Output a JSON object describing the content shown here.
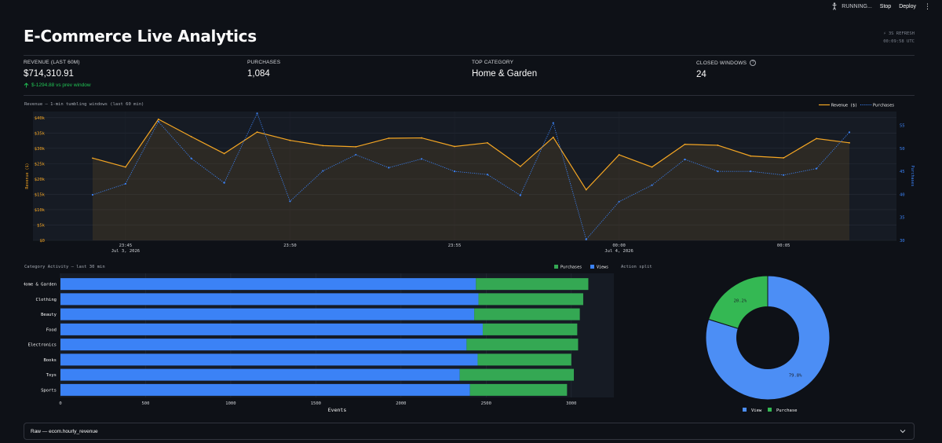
{
  "topbar": {
    "status": "RUNNING...",
    "stop": "Stop",
    "deploy": "Deploy",
    "menu": "⋮"
  },
  "title": "E-Commerce Live Analytics",
  "refresh": {
    "label": "⚡ 3S REFRESH",
    "time": "00:09:58 UTC"
  },
  "metrics": [
    {
      "label": "REVENUE (LAST 60M)",
      "value": "$714,310.91",
      "delta": "$-1294.88 vs prev window"
    },
    {
      "label": "PURCHASES",
      "value": "1,084"
    },
    {
      "label": "TOP CATEGORY",
      "value": "Home & Garden"
    },
    {
      "label": "CLOSED WINDOWS",
      "value": "24"
    }
  ],
  "revenue_chart_title": "Revenue — 1-min tumbling windows  (last 60 min)",
  "category_chart_title": "Category Activity — last 30 min",
  "pie_chart_title": "Action split",
  "expander": {
    "label": "Raw — ecom.hourly_revenue"
  },
  "colors": {
    "revenue": "#f5a623",
    "purchases": "#3b82f6",
    "views": "#3b82f6",
    "purchase_bar": "#34a853",
    "pie_view": "#4c8ef5",
    "pie_purchase": "#34b853"
  },
  "chart_data": [
    {
      "type": "line",
      "x": [
        "23:44",
        "23:45",
        "23:46",
        "23:47",
        "23:48",
        "23:49",
        "23:50",
        "23:51",
        "23:52",
        "23:53",
        "23:54",
        "23:55",
        "23:56",
        "23:57",
        "23:58",
        "23:59",
        "00:00",
        "00:01",
        "00:02",
        "00:03",
        "00:04",
        "00:05",
        "00:06",
        "00:07"
      ],
      "xticks": [
        {
          "at": "23:45",
          "label": "23:45",
          "sub": "Jul 3, 2026"
        },
        {
          "at": "23:50",
          "label": "23:50"
        },
        {
          "at": "23:55",
          "label": "23:55"
        },
        {
          "at": "00:00",
          "label": "00:00",
          "sub": "Jul 4, 2026"
        },
        {
          "at": "00:05",
          "label": "00:05"
        }
      ],
      "series": [
        {
          "name": "Revenue ($)",
          "axis": "y",
          "values": [
            26800,
            23900,
            39500,
            33800,
            28300,
            35300,
            32600,
            30900,
            30500,
            33300,
            33400,
            30600,
            31800,
            24100,
            33600,
            16500,
            27900,
            23900,
            31300,
            31000,
            27500,
            26900,
            33200,
            31800
          ]
        },
        {
          "name": "Purchases",
          "axis": "y2",
          "values": [
            39.9,
            42.3,
            55.8,
            47.8,
            42.5,
            57.6,
            38.5,
            45.1,
            48.6,
            45.8,
            47.7,
            45.0,
            44.3,
            39.8,
            55.5,
            30.2,
            38.4,
            42.0,
            47.6,
            45.0,
            45.0,
            44.2,
            45.6,
            53.5
          ]
        }
      ],
      "ylim": [
        0,
        42000
      ],
      "yticks": [
        "$0",
        "$5k",
        "$10k",
        "$15k",
        "$20k",
        "$25k",
        "$30k",
        "$35k",
        "$40k"
      ],
      "y2lim": [
        30,
        58
      ],
      "y2ticks": [
        30,
        35,
        40,
        45,
        50,
        55
      ],
      "ylabel": "Revenue ($)",
      "y2label": "Purchases",
      "legend": "top-right",
      "grid": true
    },
    {
      "type": "bar",
      "orientation": "horizontal",
      "stacked": true,
      "categories": [
        "Home & Garden",
        "Clothing",
        "Beauty",
        "Food",
        "Electronics",
        "Books",
        "Toys",
        "Sports"
      ],
      "series": [
        {
          "name": "Views",
          "values": [
            2440,
            2455,
            2430,
            2480,
            2385,
            2450,
            2345,
            2405
          ]
        },
        {
          "name": "Purchases",
          "values": [
            660,
            615,
            620,
            555,
            655,
            550,
            670,
            570
          ]
        }
      ],
      "xlim": [
        0,
        3250
      ],
      "xticks": [
        0,
        500,
        1000,
        1500,
        2000,
        2500,
        3000
      ],
      "xlabel": "Events",
      "legend": "top-right",
      "grid": true
    },
    {
      "type": "pie",
      "hole": 0.5,
      "labels": [
        "View",
        "Purchase"
      ],
      "values": [
        79.8,
        20.2
      ],
      "text": [
        "79.8%",
        "20.2%"
      ],
      "legend": "bottom"
    }
  ]
}
